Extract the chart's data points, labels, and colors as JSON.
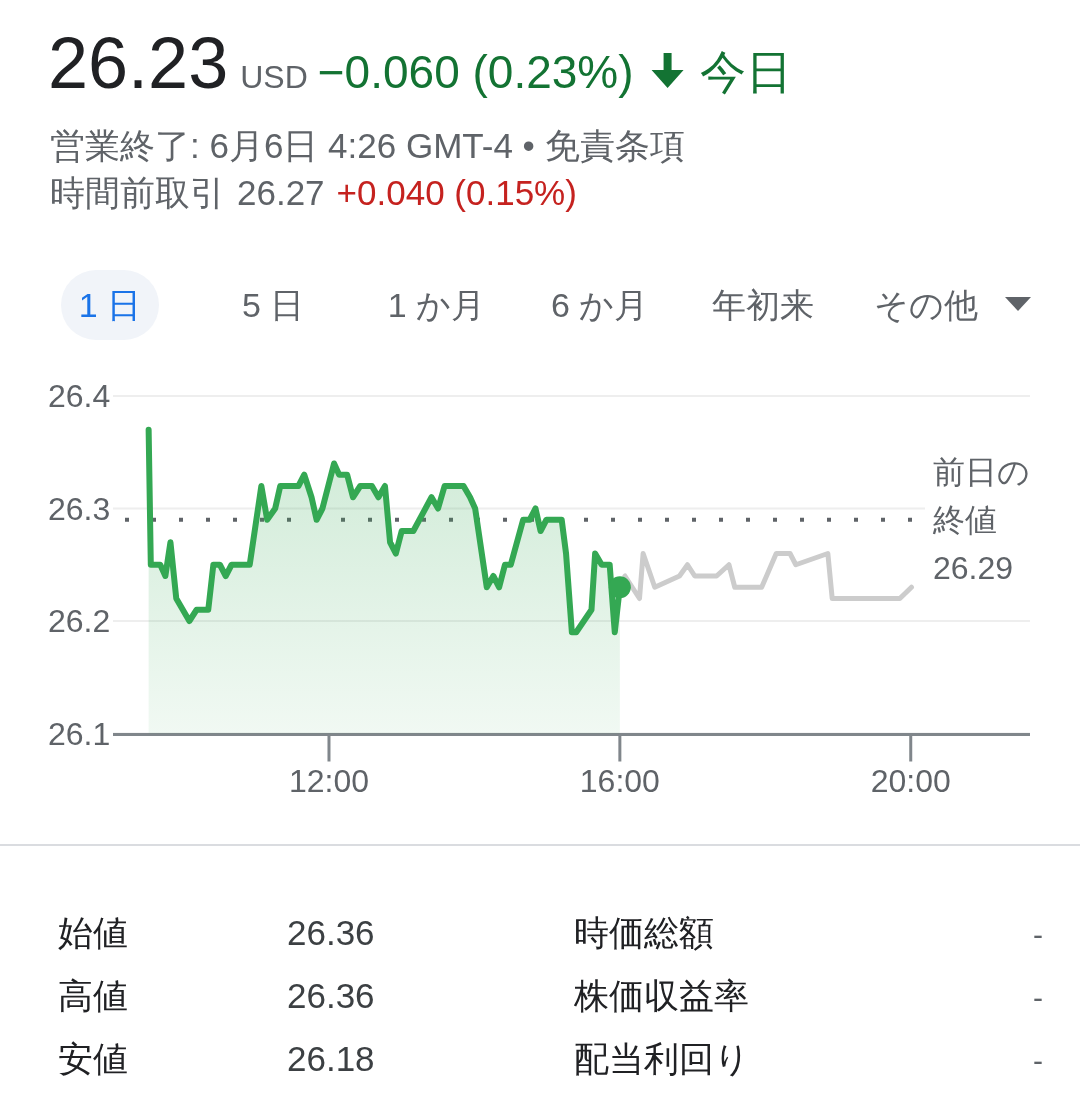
{
  "chart_data": {
    "type": "line",
    "title": "26.23",
    "subtitle": "営業終了: 6月6日 4:26 GMT-4 • 免責条項",
    "annotations": [
      "USD",
      "−0.060 (0.23%)",
      "今日",
      "時間前取引",
      "26.27",
      "+0.040 (0.15%)",
      "1 日",
      "5 日",
      "1 か月",
      "6 か月",
      "年初来",
      "その他",
      "始値",
      "26.36",
      "高値",
      "26.36",
      "安値",
      "26.18",
      "時価総額",
      "-",
      "株価収益率",
      "-",
      "配当利回り",
      "-"
    ],
    "xlim": [
      9.03,
      21.64
    ],
    "xticks": [
      {
        "value": 12,
        "label": "12:00"
      },
      {
        "value": 16,
        "label": "16:00"
      },
      {
        "value": 20,
        "label": "20:00"
      }
    ],
    "ylim": [
      26.1,
      26.4
    ],
    "yticks": [
      26.1,
      26.2,
      26.3,
      26.4
    ],
    "grid": "y",
    "series": [
      {
        "type": "area",
        "color": "#34a853",
        "x": [
          9.52,
          9.55,
          9.68,
          9.75,
          9.82,
          9.9,
          10.08,
          10.18,
          10.34,
          10.41,
          10.5,
          10.58,
          10.66,
          10.91,
          11.07,
          11.15,
          11.26,
          11.33,
          11.42,
          11.5,
          11.58,
          11.66,
          11.76,
          11.83,
          11.91,
          12.07,
          12.14,
          12.25,
          12.33,
          12.43,
          12.59,
          12.68,
          12.77,
          12.84,
          12.92,
          13.0,
          13.16,
          13.41,
          13.5,
          13.59,
          13.85,
          13.94,
          14.01,
          14.17,
          14.26,
          14.34,
          14.42,
          14.5,
          14.67,
          14.76,
          14.84,
          14.91,
          14.99,
          15.2,
          15.26,
          15.34,
          15.4,
          15.61,
          15.66,
          15.75,
          15.86,
          15.93,
          16.0
        ],
        "values": [
          26.37,
          26.25,
          26.25,
          26.24,
          26.27,
          26.22,
          26.2,
          26.21,
          26.21,
          26.25,
          26.25,
          26.24,
          26.25,
          26.25,
          26.32,
          26.29,
          26.3,
          26.32,
          26.32,
          26.32,
          26.32,
          26.33,
          26.31,
          26.29,
          26.3,
          26.34,
          26.33,
          26.33,
          26.31,
          26.32,
          26.32,
          26.31,
          26.32,
          26.27,
          26.26,
          26.28,
          26.28,
          26.31,
          26.3,
          26.32,
          26.32,
          26.31,
          26.3,
          26.23,
          26.24,
          26.23,
          26.25,
          26.25,
          26.29,
          26.29,
          26.3,
          26.28,
          26.29,
          26.29,
          26.26,
          26.19,
          26.19,
          26.21,
          26.26,
          26.25,
          26.25,
          26.19,
          26.23
        ]
      },
      {
        "type": "line",
        "color": "#cccccc",
        "x": [
          16.07,
          16.27,
          16.32,
          16.48,
          16.82,
          16.93,
          17.03,
          17.18,
          17.33,
          17.5,
          17.58,
          17.67,
          17.95,
          18.15,
          18.34,
          18.42,
          18.86,
          18.92,
          19.85,
          20.01
        ],
        "values": [
          26.24,
          26.22,
          26.26,
          26.23,
          26.24,
          26.25,
          26.24,
          26.24,
          26.24,
          26.25,
          26.23,
          26.23,
          26.23,
          26.26,
          26.26,
          26.25,
          26.26,
          26.22,
          26.22,
          26.23
        ]
      },
      {
        "type": "scatter",
        "color": "#34a853",
        "marker": "circle",
        "x": [
          16.0
        ],
        "values": [
          26.23
        ]
      }
    ],
    "ref_lines": [
      {
        "axis": "y",
        "value": 26.29,
        "label": "前日の終値 26.29",
        "line_style": "dotted",
        "color": "#5f6368"
      }
    ]
  }
}
